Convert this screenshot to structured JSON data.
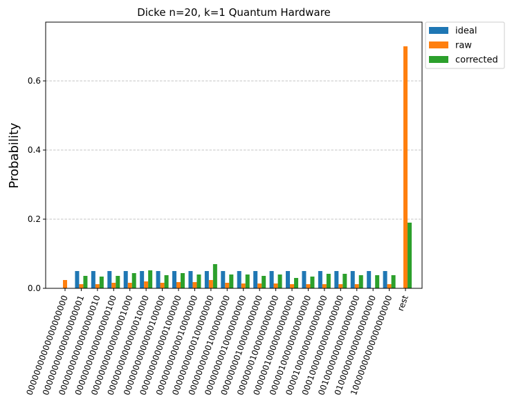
{
  "chart_data": {
    "type": "bar",
    "title": "Dicke n=20, k=1 Quantum Hardware",
    "xlabel": "",
    "ylabel": "Probability",
    "ylim": [
      0,
      0.77
    ],
    "yticks": [
      0.0,
      0.2,
      0.4,
      0.6
    ],
    "ytick_labels": [
      "0.0",
      "0.2",
      "0.4",
      "0.6"
    ],
    "grid": "y-dashed",
    "legend_position": "outside-top-right",
    "categories": [
      "00000000000000000000",
      "00000000000000000001",
      "00000000000000000010",
      "00000000000000000100",
      "00000000000000001000",
      "00000000000000010000",
      "00000000000000100000",
      "00000000000001000000",
      "00000000000010000000",
      "00000000000100000000",
      "00000000001000000000",
      "00000000010000000000",
      "00000000100000000000",
      "00000001000000000000",
      "00000010000000000000",
      "00000100000000000000",
      "00001000000000000000",
      "00010000000000000000",
      "00100000000000000000",
      "01000000000000000000",
      "10000000000000000000",
      "rest"
    ],
    "series": [
      {
        "name": "ideal",
        "color": "#1f77b4",
        "values": [
          0,
          0.05,
          0.05,
          0.05,
          0.05,
          0.05,
          0.05,
          0.05,
          0.05,
          0.05,
          0.05,
          0.05,
          0.05,
          0.05,
          0.05,
          0.05,
          0.05,
          0.05,
          0.05,
          0.05,
          0.05,
          0
        ]
      },
      {
        "name": "raw",
        "color": "#ff7f0e",
        "values": [
          0.024,
          0.012,
          0.012,
          0.016,
          0.016,
          0.02,
          0.016,
          0.018,
          0.018,
          0.024,
          0.016,
          0.014,
          0.014,
          0.014,
          0.012,
          0.012,
          0.012,
          0.012,
          0.012,
          0.0,
          0.012,
          0.7
        ]
      },
      {
        "name": "corrected",
        "color": "#2ca02c",
        "values": [
          0,
          0.036,
          0.034,
          0.036,
          0.044,
          0.052,
          0.038,
          0.044,
          0.04,
          0.07,
          0.04,
          0.04,
          0.036,
          0.04,
          0.03,
          0.034,
          0.042,
          0.042,
          0.038,
          0.038,
          0.038,
          0.19
        ]
      }
    ]
  }
}
